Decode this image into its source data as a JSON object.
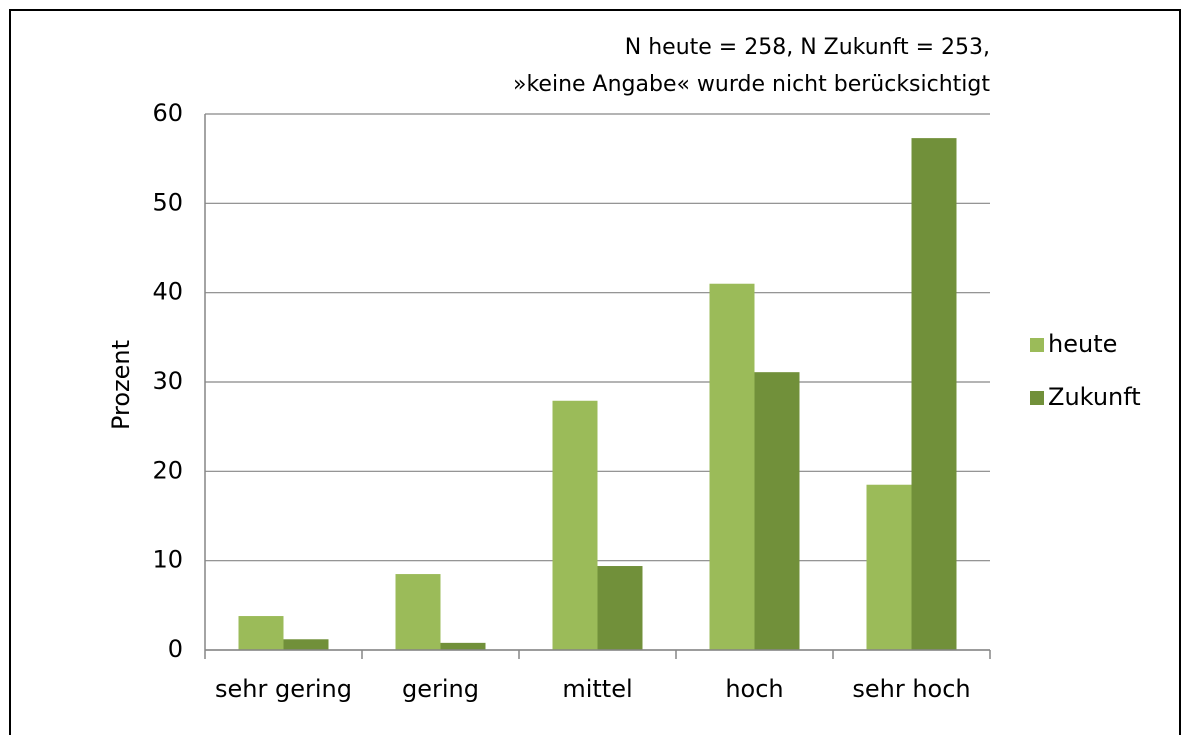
{
  "chart_data": {
    "type": "bar",
    "annotation": [
      "N heute = 258, N Zukunft = 253,",
      "»keine Angabe« wurde nicht berücksichtigt"
    ],
    "y_label": "Prozent",
    "categories": [
      "sehr gering",
      "gering",
      "mittel",
      "hoch",
      "sehr hoch"
    ],
    "series": [
      {
        "name": "heute",
        "color": "#9bbb59",
        "values": [
          3.8,
          8.5,
          27.9,
          41.0,
          18.5
        ]
      },
      {
        "name": "Zukunft",
        "color": "#71903a",
        "values": [
          1.2,
          0.8,
          9.4,
          31.1,
          57.3
        ]
      }
    ],
    "ylim": [
      0,
      60
    ],
    "yticks": [
      0,
      10,
      20,
      30,
      40,
      50,
      60
    ],
    "grid": true,
    "legend": "right"
  }
}
